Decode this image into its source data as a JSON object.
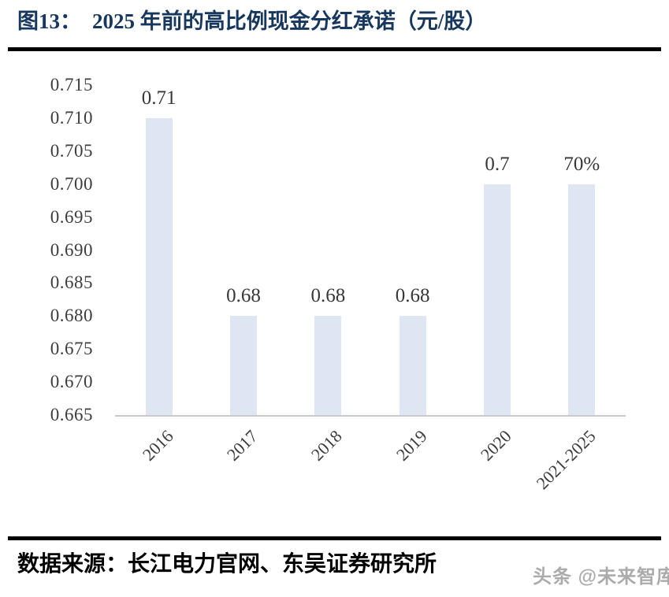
{
  "figure": {
    "label": "图13：",
    "title": "2025 年前的高比例现金分红承诺（元/股）"
  },
  "chart_data": {
    "type": "bar",
    "title": "2025 年前的高比例现金分红承诺（元/股）",
    "categories": [
      "2016",
      "2017",
      "2018",
      "2019",
      "2020",
      "2021-2025"
    ],
    "values": [
      0.71,
      0.68,
      0.68,
      0.68,
      0.7,
      0.7
    ],
    "bar_value_labels": [
      "0.71",
      "0.68",
      "0.68",
      "0.68",
      "0.7",
      "70%"
    ],
    "xlabel": "",
    "ylabel": "",
    "ylim": [
      0.665,
      0.715
    ],
    "y_tick_labels": [
      "0.715",
      "0.710",
      "0.705",
      "0.700",
      "0.695",
      "0.690",
      "0.685",
      "0.680",
      "0.675",
      "0.670",
      "0.665"
    ],
    "grid": false,
    "legend_position": "none",
    "bar_color": "#dde6f2",
    "axis_line_color": "#c9c9c9",
    "tick_label_color": "#3d3d3d",
    "x_label_rotation_deg": 45
  },
  "footer": {
    "source": "数据来源：长江电力官网、东吴证券研究所",
    "watermark": "头条 @未来智库"
  },
  "colors": {
    "title_text": "#17375e",
    "divider": "#000000",
    "source_text": "#000000",
    "watermark_text": "#ababab"
  }
}
